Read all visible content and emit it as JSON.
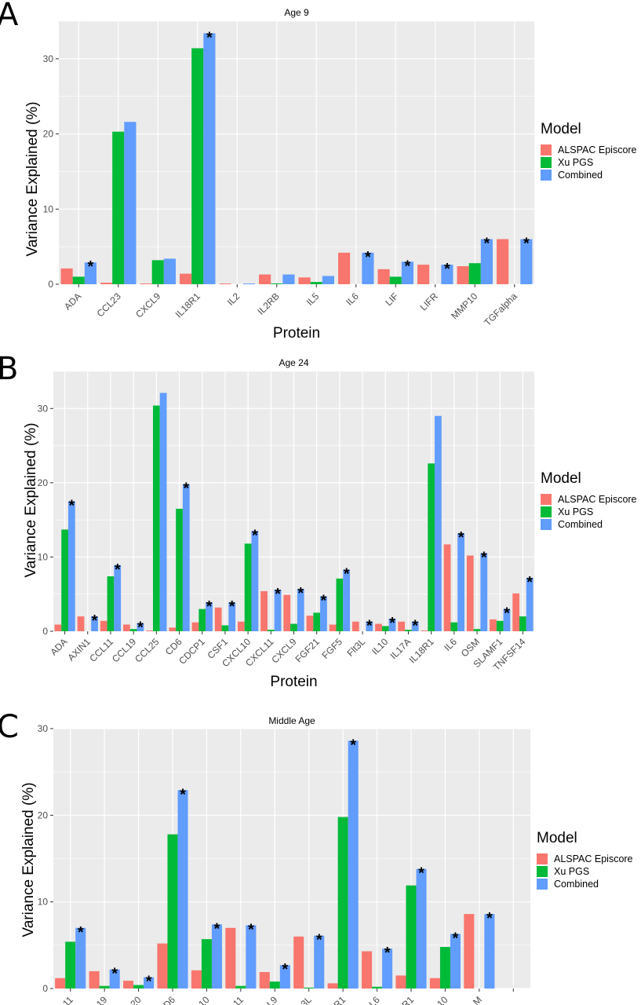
{
  "legend": {
    "title": "Model",
    "entries": [
      {
        "label": "ALSPAC Episcore",
        "color": "#F8766D"
      },
      {
        "label": "Xu PGS",
        "color": "#00BA38"
      },
      {
        "label": "Combined",
        "color": "#619CFF"
      }
    ]
  },
  "chart_data": [
    {
      "panel": "A",
      "type": "bar",
      "title": "Age 9",
      "xlabel": "Protein",
      "ylabel": "Variance Explained (%)",
      "ylim": [
        0,
        35
      ],
      "yticks": [
        0,
        10,
        20,
        30
      ],
      "categories": [
        "ADA",
        "CCL23",
        "CXCL9",
        "IL18R1",
        "IL2",
        "IL2RB",
        "IL5",
        "IL6",
        "LIF",
        "LIFR",
        "MMP10",
        "TGFalpha"
      ],
      "series": [
        {
          "name": "ALSPAC Episcore",
          "values": [
            2.1,
            0.2,
            0.1,
            1.4,
            0.1,
            1.3,
            0.9,
            4.2,
            2.0,
            2.6,
            2.4,
            6.0
          ]
        },
        {
          "name": "Xu PGS",
          "values": [
            1.0,
            20.3,
            3.2,
            31.4,
            0,
            0.1,
            0.3,
            0,
            1.0,
            0,
            2.8,
            0
          ]
        },
        {
          "name": "Combined",
          "values": [
            2.9,
            21.6,
            3.4,
            33.4,
            0.1,
            1.3,
            1.1,
            4.2,
            3.0,
            2.6,
            6.0,
            6.0
          ]
        }
      ],
      "significant": [
        true,
        false,
        false,
        true,
        false,
        false,
        false,
        true,
        true,
        true,
        true,
        true
      ]
    },
    {
      "panel": "B",
      "type": "bar",
      "title": "Age 24",
      "xlabel": "Protein",
      "ylabel": "Variance Explained (%)",
      "ylim": [
        0,
        35
      ],
      "yticks": [
        0,
        10,
        20,
        30
      ],
      "categories": [
        "ADA",
        "AXIN1",
        "CCL11",
        "CCL19",
        "CCL25",
        "CD6",
        "CDCP1",
        "CSF1",
        "CXCL10",
        "CXCL11",
        "CXCL9",
        "FGF21",
        "FGF5",
        "Flt3L",
        "IL10",
        "IL17A",
        "IL18R1",
        "IL6",
        "OSM",
        "SLAMF1",
        "TNFSF14"
      ],
      "series": [
        {
          "name": "ALSPAC Episcore",
          "values": [
            0.9,
            2.0,
            1.4,
            0.9,
            0.1,
            0.5,
            1.2,
            3.2,
            1.3,
            5.4,
            4.9,
            2.1,
            0.9,
            1.3,
            1.0,
            1.3,
            0.1,
            11.7,
            10.2,
            1.6,
            5.1
          ]
        },
        {
          "name": "Xu PGS",
          "values": [
            13.7,
            0,
            7.4,
            0.3,
            30.4,
            16.5,
            3.0,
            0.8,
            11.8,
            0.2,
            1.0,
            2.5,
            7.1,
            0,
            0.7,
            0.2,
            22.6,
            1.2,
            0.3,
            1.4,
            2.0
          ]
        },
        {
          "name": "Combined",
          "values": [
            17.5,
            2.0,
            8.9,
            1.1,
            32.1,
            19.8,
            3.9,
            3.9,
            13.5,
            5.6,
            5.7,
            4.7,
            8.3,
            1.3,
            1.7,
            1.3,
            29.0,
            13.2,
            10.5,
            3.0,
            7.2
          ]
        }
      ],
      "significant": [
        true,
        true,
        true,
        true,
        false,
        true,
        true,
        true,
        true,
        true,
        true,
        true,
        true,
        true,
        true,
        true,
        false,
        true,
        true,
        true,
        true
      ]
    },
    {
      "panel": "C",
      "type": "bar",
      "title": "Middle Age",
      "xlabel": "",
      "ylabel": "Variance Explained (%)",
      "ylim": [
        0,
        30
      ],
      "yticks": [
        0,
        10,
        20,
        30
      ],
      "categories": [
        "",
        "",
        "",
        "",
        "",
        "",
        "",
        "",
        "",
        "",
        "",
        "",
        "",
        ""
      ],
      "tick_fragments": [
        "11",
        "19",
        "20",
        "D6",
        "10",
        "11",
        "L9",
        "3L",
        "R1",
        "L6",
        "R1",
        "10",
        "M",
        ""
      ],
      "series": [
        {
          "name": "ALSPAC Episcore",
          "values": [
            1.2,
            2.0,
            0.9,
            5.2,
            2.1,
            7.0,
            1.9,
            6.0,
            0.6,
            4.3,
            1.5,
            1.2,
            8.6,
            0
          ]
        },
        {
          "name": "Xu PGS",
          "values": [
            5.4,
            0.3,
            0.4,
            17.8,
            5.7,
            0.3,
            0.8,
            0.1,
            19.8,
            0.2,
            11.9,
            4.8,
            0,
            0
          ]
        },
        {
          "name": "Combined",
          "values": [
            7.0,
            2.2,
            1.3,
            22.9,
            7.4,
            7.3,
            2.7,
            6.1,
            28.6,
            4.6,
            13.8,
            6.3,
            8.6,
            0
          ]
        }
      ],
      "significant": [
        true,
        true,
        true,
        true,
        true,
        true,
        true,
        true,
        true,
        true,
        true,
        true,
        true,
        false
      ]
    }
  ]
}
